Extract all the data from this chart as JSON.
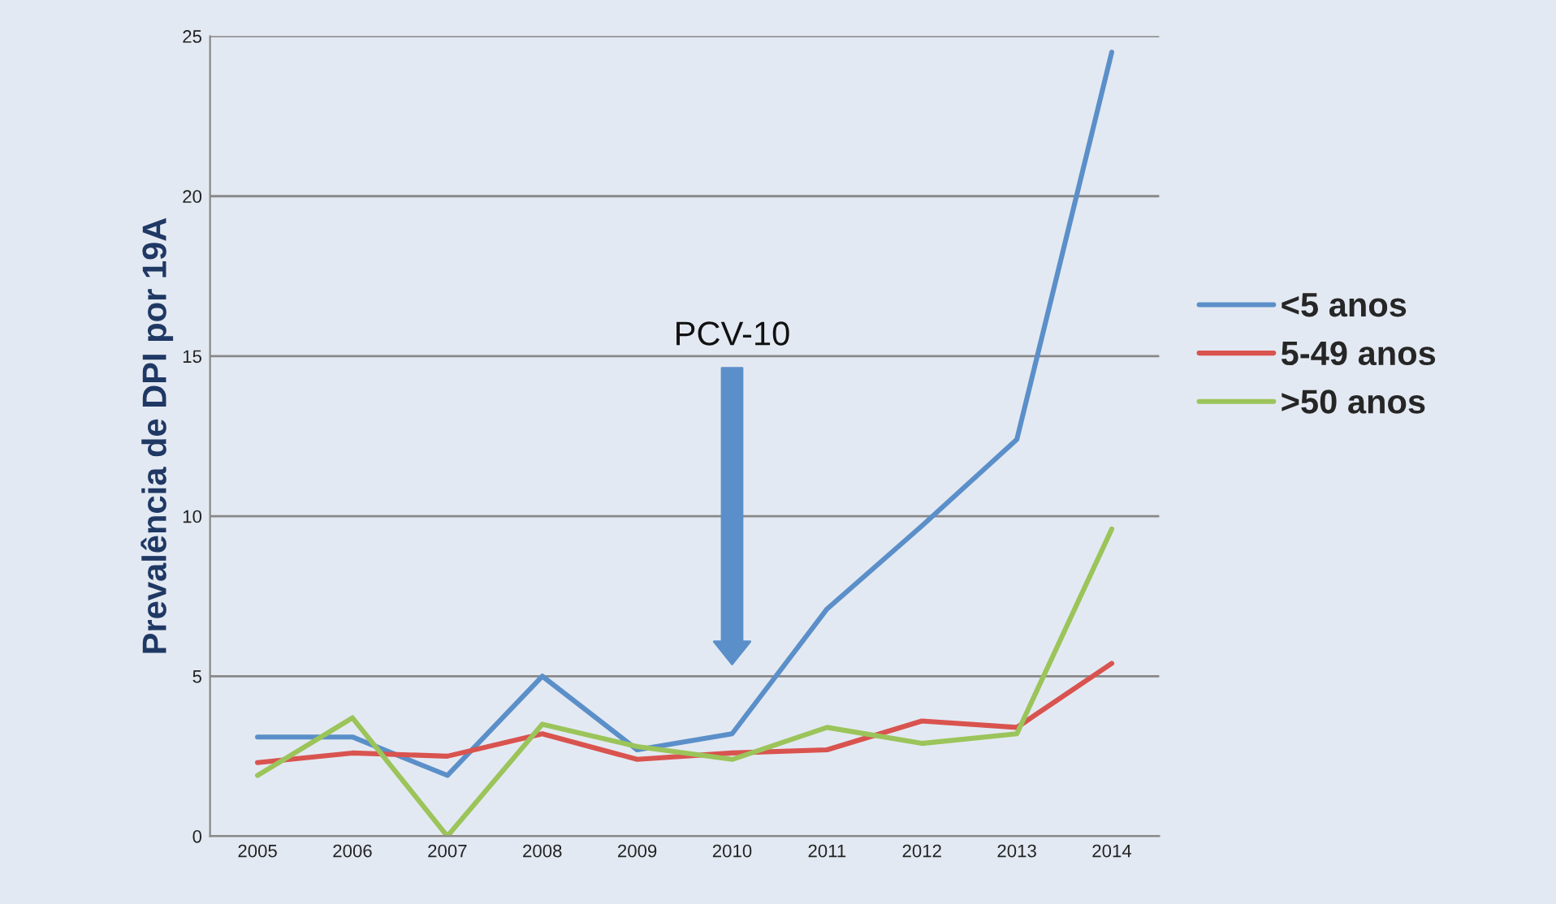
{
  "chart_data": {
    "type": "line",
    "ylabel": "Prevalência de DPI por 19A",
    "categories": [
      "2005",
      "2006",
      "2007",
      "2008",
      "2009",
      "2010",
      "2011",
      "2012",
      "2013",
      "2014"
    ],
    "series": [
      {
        "name": "<5 anos",
        "color": "#5b8fc9",
        "values": [
          3.1,
          3.1,
          1.9,
          5.0,
          2.7,
          3.2,
          7.1,
          9.7,
          12.4,
          24.5
        ]
      },
      {
        "name": "5-49 anos",
        "color": "#d9534f",
        "values": [
          2.3,
          2.6,
          2.5,
          3.2,
          2.4,
          2.6,
          2.7,
          3.6,
          3.4,
          5.4
        ]
      },
      {
        "name": ">50 anos",
        "color": "#9bc45a",
        "values": [
          1.9,
          3.7,
          0,
          3.5,
          2.8,
          2.4,
          3.4,
          2.9,
          3.2,
          9.6
        ]
      }
    ],
    "ylim": [
      0,
      25
    ],
    "yticks": [
      0,
      5,
      10,
      15,
      20,
      25
    ],
    "grid": "y",
    "legend": "right",
    "marker": "none",
    "line_style": "solid",
    "annotations": [
      "PCV-10"
    ]
  }
}
